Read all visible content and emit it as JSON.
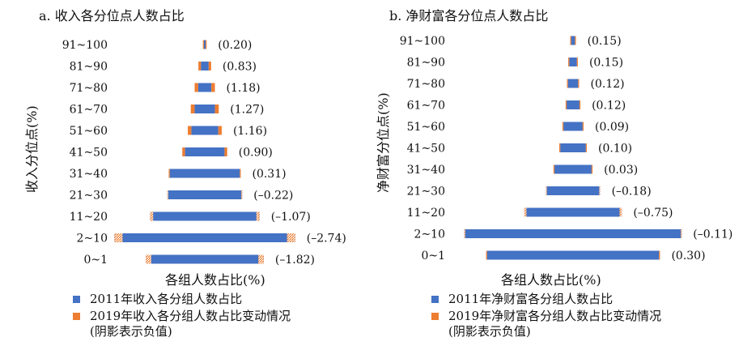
{
  "colors": {
    "base": "#4472C4",
    "change": "#ED7D31"
  },
  "panels": [
    {
      "title": "a. 收入各分位点人数占比",
      "ylabel": "收入分位点(%)",
      "xlabel": "各组人数占比(%)",
      "legend": [
        "2011年收入各分组人数占比",
        "2019年收入各分组人数占比变动情况\n(阴影表示负值)"
      ]
    },
    {
      "title": "b. 净财富各分位点人数占比",
      "ylabel": "净财富分位点(%)",
      "xlabel": "各组人数占比(%)",
      "legend": [
        "2011年净财富各分组人数占比",
        "2019年净财富各分组人数占比变动情况\n(阴影表示负值)"
      ]
    }
  ],
  "chart_data": [
    {
      "type": "bar",
      "orientation": "horizontal-centered",
      "title": "a. 收入各分位点人数占比",
      "xlabel": "各组人数占比(%)",
      "ylabel": "收入分位点(%)",
      "categories": [
        "91~100",
        "81~90",
        "71~80",
        "61~70",
        "51~60",
        "41~50",
        "31~40",
        "21~30",
        "11~20",
        "2~10",
        "0~1"
      ],
      "series": [
        {
          "name": "2011年收入各分组人数占比",
          "values": [
            0.3,
            1.3,
            2.2,
            3.4,
            4.5,
            6.6,
            11.7,
            12.5,
            18.3,
            30.2,
            19.7
          ]
        },
        {
          "name": "2019年收入各分组人数占比变动情况(阴影表示负值)",
          "values": [
            0.2,
            0.83,
            1.18,
            1.27,
            1.16,
            0.9,
            0.31,
            -0.22,
            -1.07,
            -2.74,
            -1.82
          ]
        }
      ],
      "value_labels": [
        "(0.20)",
        "(0.83)",
        "(1.18)",
        "(1.27)",
        "(1.16)",
        "(0.90)",
        "(0.31)",
        "(–0.22)",
        "(–1.07)",
        "(–2.74)",
        "(–1.82)"
      ]
    },
    {
      "type": "bar",
      "orientation": "horizontal-centered",
      "title": "b. 净财富各分位点人数占比",
      "xlabel": "各组人数占比(%)",
      "ylabel": "净财富分位点(%)",
      "categories": [
        "91~100",
        "81~90",
        "71~80",
        "61~70",
        "51~60",
        "41~50",
        "31~40",
        "21~30",
        "11~20",
        "2~10",
        "0~1"
      ],
      "series": [
        {
          "name": "2011年净财富各分组人数占比",
          "values": [
            0.6,
            1.2,
            1.6,
            2.0,
            3.0,
            4.0,
            5.8,
            8.5,
            15.3,
            34.0,
            26.9
          ]
        },
        {
          "name": "2019年净财富各分组人数占比变动情况(阴影表示负值)",
          "values": [
            0.15,
            0.15,
            0.12,
            0.12,
            0.09,
            0.1,
            0.03,
            -0.18,
            -0.75,
            -0.11,
            0.3
          ]
        }
      ],
      "value_labels": [
        "(0.15)",
        "(0.15)",
        "(0.12)",
        "(0.12)",
        "(0.09)",
        "(0.10)",
        "(0.03)",
        "(–0.18)",
        "(–0.75)",
        "(–0.11)",
        "(0.30)"
      ]
    }
  ]
}
